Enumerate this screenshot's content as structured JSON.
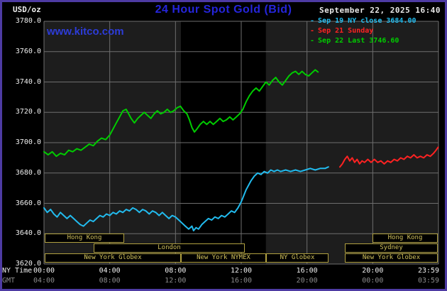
{
  "header": {
    "unit_label": "USD/oz",
    "title": "24 Hour Spot Gold (Bid)",
    "datetime": "September 22, 2025 16:40",
    "watermark": "www.kitco.com"
  },
  "legend": [
    {
      "label": "Sep 19 NY close 3684.00",
      "color": "#22bbee"
    },
    {
      "label": "Sep 21 Sunday",
      "color": "#ff2222"
    },
    {
      "label": "Sep 22 Last 3746.60",
      "color": "#00cc00"
    }
  ],
  "axes": {
    "y_ticks": [
      "3780.0",
      "3760.0",
      "3740.0",
      "3720.0",
      "3700.0",
      "3680.0",
      "3660.0",
      "3640.0",
      "3620.0"
    ],
    "x_axis_rows": [
      {
        "label": "NY Time",
        "color": "#f0f0f0",
        "ticks": [
          "00:00",
          "04:00",
          "08:00",
          "12:00",
          "16:00",
          "20:00",
          "23:59"
        ]
      },
      {
        "label": "GMT",
        "color": "#8c8c8c",
        "ticks": [
          "04:00",
          "08:00",
          "12:00",
          "16:00",
          "20:00",
          "00:00",
          "03:59"
        ]
      }
    ]
  },
  "sessions": {
    "rows": [
      [
        {
          "label": "Hong Kong",
          "start": 0.05,
          "end": 4.9
        },
        {
          "label": "Hong Kong",
          "start": 20.0,
          "end": 23.95
        }
      ],
      [
        {
          "label": "London",
          "start": 3.0,
          "end": 12.2
        },
        {
          "label": "Sydney",
          "start": 18.3,
          "end": 23.95
        }
      ],
      [
        {
          "label": "New York Globex",
          "start": 0.05,
          "end": 8.33
        },
        {
          "label": "New York NYMEX",
          "start": 8.33,
          "end": 13.5
        },
        {
          "label": "NY Globex",
          "start": 13.5,
          "end": 17.3
        },
        {
          "label": "New York Globex",
          "start": 18.3,
          "end": 23.95
        }
      ]
    ]
  },
  "chart_data": {
    "type": "line",
    "title": "24 Hour Spot Gold (Bid)",
    "ylabel": "USD/oz",
    "xlabel": "NY Time (hours)",
    "xlim": [
      0,
      24
    ],
    "ylim": [
      3620,
      3780
    ],
    "y_tick_step": 20,
    "x_grid_hours": [
      0,
      4,
      8,
      12,
      16,
      20,
      24
    ],
    "grid": true,
    "grid_color": "#6e6e6e",
    "plot_bg": "#1d1d1d",
    "nymex_band": {
      "x": [
        8.33,
        13.5
      ],
      "color": "#000000"
    },
    "legend_position": "top-right",
    "series": [
      {
        "name": "Sep 19 NY close",
        "close": 3684.0,
        "color": "#22bbee",
        "points": [
          [
            0,
            3657
          ],
          [
            0.2,
            3654
          ],
          [
            0.4,
            3656
          ],
          [
            0.6,
            3653
          ],
          [
            0.8,
            3651
          ],
          [
            1,
            3654
          ],
          [
            1.2,
            3652
          ],
          [
            1.4,
            3650
          ],
          [
            1.6,
            3652
          ],
          [
            1.8,
            3650
          ],
          [
            2,
            3648
          ],
          [
            2.2,
            3646
          ],
          [
            2.4,
            3645
          ],
          [
            2.6,
            3647
          ],
          [
            2.8,
            3649
          ],
          [
            3,
            3648
          ],
          [
            3.2,
            3650
          ],
          [
            3.4,
            3652
          ],
          [
            3.6,
            3651
          ],
          [
            3.8,
            3653
          ],
          [
            4,
            3652
          ],
          [
            4.2,
            3654
          ],
          [
            4.4,
            3653
          ],
          [
            4.6,
            3655
          ],
          [
            4.8,
            3654
          ],
          [
            5,
            3656
          ],
          [
            5.2,
            3655
          ],
          [
            5.4,
            3657
          ],
          [
            5.6,
            3656
          ],
          [
            5.8,
            3654
          ],
          [
            6,
            3656
          ],
          [
            6.2,
            3655
          ],
          [
            6.4,
            3653
          ],
          [
            6.6,
            3655
          ],
          [
            6.8,
            3654
          ],
          [
            7,
            3652
          ],
          [
            7.2,
            3654
          ],
          [
            7.4,
            3652
          ],
          [
            7.6,
            3650
          ],
          [
            7.8,
            3652
          ],
          [
            8,
            3651
          ],
          [
            8.2,
            3649
          ],
          [
            8.4,
            3647
          ],
          [
            8.6,
            3645
          ],
          [
            8.8,
            3643
          ],
          [
            9,
            3645
          ],
          [
            9.1,
            3642
          ],
          [
            9.25,
            3644
          ],
          [
            9.4,
            3643
          ],
          [
            9.6,
            3646
          ],
          [
            9.8,
            3648
          ],
          [
            10,
            3650
          ],
          [
            10.2,
            3649
          ],
          [
            10.4,
            3651
          ],
          [
            10.6,
            3650
          ],
          [
            10.8,
            3652
          ],
          [
            11,
            3651
          ],
          [
            11.2,
            3653
          ],
          [
            11.4,
            3655
          ],
          [
            11.6,
            3654
          ],
          [
            11.8,
            3657
          ],
          [
            12,
            3661
          ],
          [
            12.15,
            3665
          ],
          [
            12.3,
            3669
          ],
          [
            12.45,
            3672
          ],
          [
            12.6,
            3675
          ],
          [
            12.8,
            3678
          ],
          [
            13,
            3680
          ],
          [
            13.2,
            3679
          ],
          [
            13.4,
            3681
          ],
          [
            13.6,
            3680
          ],
          [
            13.8,
            3682
          ],
          [
            14,
            3681
          ],
          [
            14.2,
            3682
          ],
          [
            14.4,
            3681
          ],
          [
            14.7,
            3682
          ],
          [
            15,
            3681
          ],
          [
            15.3,
            3682
          ],
          [
            15.6,
            3681
          ],
          [
            15.9,
            3682
          ],
          [
            16.2,
            3683
          ],
          [
            16.5,
            3682
          ],
          [
            16.8,
            3683
          ],
          [
            17.1,
            3683
          ],
          [
            17.3,
            3684
          ]
        ]
      },
      {
        "name": "Sep 21 Sunday",
        "color": "#ff2222",
        "points": [
          [
            18,
            3684
          ],
          [
            18.15,
            3686
          ],
          [
            18.3,
            3689
          ],
          [
            18.45,
            3691
          ],
          [
            18.6,
            3688
          ],
          [
            18.75,
            3690
          ],
          [
            18.9,
            3687
          ],
          [
            19.05,
            3689
          ],
          [
            19.2,
            3686
          ],
          [
            19.35,
            3688
          ],
          [
            19.5,
            3687
          ],
          [
            19.7,
            3689
          ],
          [
            19.9,
            3687
          ],
          [
            20.1,
            3689
          ],
          [
            20.3,
            3687
          ],
          [
            20.5,
            3688
          ],
          [
            20.7,
            3686
          ],
          [
            20.9,
            3688
          ],
          [
            21.1,
            3687
          ],
          [
            21.3,
            3689
          ],
          [
            21.5,
            3688
          ],
          [
            21.7,
            3690
          ],
          [
            21.9,
            3689
          ],
          [
            22.1,
            3691
          ],
          [
            22.3,
            3690
          ],
          [
            22.5,
            3692
          ],
          [
            22.7,
            3690
          ],
          [
            22.9,
            3691
          ],
          [
            23.1,
            3690
          ],
          [
            23.3,
            3692
          ],
          [
            23.5,
            3691
          ],
          [
            23.7,
            3693
          ],
          [
            23.85,
            3695
          ],
          [
            23.98,
            3697
          ]
        ]
      },
      {
        "name": "Sep 22",
        "last": 3746.6,
        "color": "#00cc00",
        "points": [
          [
            0,
            3694
          ],
          [
            0.25,
            3692
          ],
          [
            0.5,
            3694
          ],
          [
            0.75,
            3691
          ],
          [
            1,
            3693
          ],
          [
            1.25,
            3692
          ],
          [
            1.5,
            3695
          ],
          [
            1.75,
            3694
          ],
          [
            2,
            3696
          ],
          [
            2.25,
            3695
          ],
          [
            2.5,
            3697
          ],
          [
            2.75,
            3699
          ],
          [
            3,
            3698
          ],
          [
            3.25,
            3701
          ],
          [
            3.5,
            3703
          ],
          [
            3.75,
            3702
          ],
          [
            4,
            3705
          ],
          [
            4.2,
            3709
          ],
          [
            4.4,
            3713
          ],
          [
            4.6,
            3717
          ],
          [
            4.8,
            3721
          ],
          [
            5,
            3722
          ],
          [
            5.15,
            3719
          ],
          [
            5.3,
            3716
          ],
          [
            5.5,
            3713
          ],
          [
            5.7,
            3716
          ],
          [
            5.9,
            3718
          ],
          [
            6.1,
            3720
          ],
          [
            6.3,
            3718
          ],
          [
            6.5,
            3716
          ],
          [
            6.7,
            3719
          ],
          [
            6.9,
            3721
          ],
          [
            7.1,
            3719
          ],
          [
            7.3,
            3720
          ],
          [
            7.5,
            3722
          ],
          [
            7.7,
            3720
          ],
          [
            7.9,
            3721
          ],
          [
            8.1,
            3723
          ],
          [
            8.3,
            3724
          ],
          [
            8.5,
            3721
          ],
          [
            8.7,
            3719
          ],
          [
            8.85,
            3715
          ],
          [
            9,
            3710
          ],
          [
            9.15,
            3707
          ],
          [
            9.3,
            3709
          ],
          [
            9.5,
            3712
          ],
          [
            9.7,
            3714
          ],
          [
            9.9,
            3712
          ],
          [
            10.1,
            3714
          ],
          [
            10.3,
            3712
          ],
          [
            10.5,
            3714
          ],
          [
            10.7,
            3716
          ],
          [
            10.9,
            3714
          ],
          [
            11.1,
            3715
          ],
          [
            11.3,
            3717
          ],
          [
            11.5,
            3715
          ],
          [
            11.7,
            3717
          ],
          [
            11.9,
            3719
          ],
          [
            12.1,
            3722
          ],
          [
            12.3,
            3727
          ],
          [
            12.5,
            3731
          ],
          [
            12.7,
            3734
          ],
          [
            12.9,
            3736
          ],
          [
            13.1,
            3734
          ],
          [
            13.3,
            3737
          ],
          [
            13.5,
            3740
          ],
          [
            13.7,
            3738
          ],
          [
            13.9,
            3741
          ],
          [
            14.1,
            3743
          ],
          [
            14.3,
            3740
          ],
          [
            14.5,
            3738
          ],
          [
            14.7,
            3741
          ],
          [
            14.9,
            3744
          ],
          [
            15.1,
            3746
          ],
          [
            15.3,
            3747
          ],
          [
            15.5,
            3745
          ],
          [
            15.7,
            3747
          ],
          [
            15.9,
            3745
          ],
          [
            16.1,
            3744
          ],
          [
            16.3,
            3746
          ],
          [
            16.5,
            3748
          ],
          [
            16.67,
            3746.6
          ]
        ]
      }
    ]
  }
}
